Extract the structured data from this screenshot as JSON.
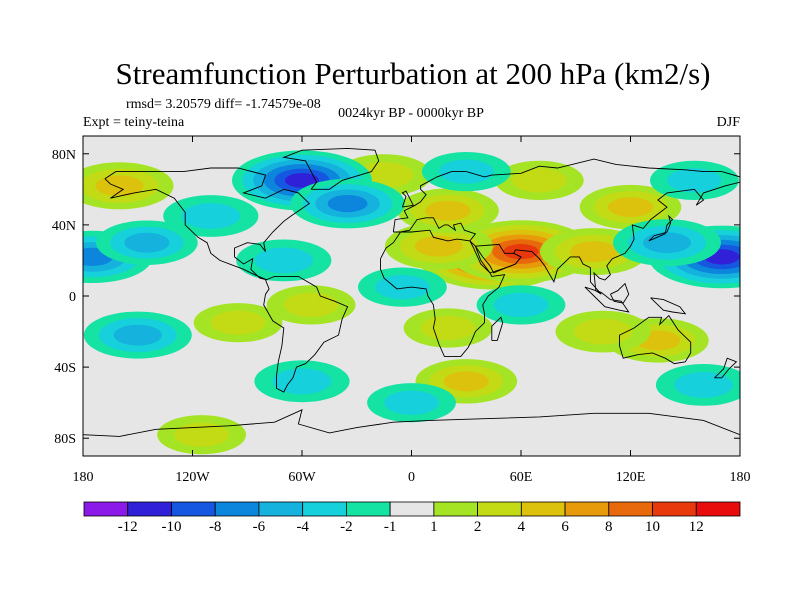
{
  "chart_data": {
    "type": "contour-map",
    "title": "Streamfunction Perturbation at 200 hPa (km2/s)",
    "stats": "rmsd= 3.20579 diff= -1.74579e-08",
    "experiment": "Expt = teiny-teina",
    "period": "0024kyr BP - 0000kyr BP",
    "season": "DJF",
    "x_ticks": [
      "180",
      "120W",
      "60W",
      "0",
      "60E",
      "120E",
      "180"
    ],
    "x_tick_values": [
      -180,
      -120,
      -60,
      0,
      60,
      120,
      180
    ],
    "y_ticks": [
      "80N",
      "40N",
      "0",
      "40S",
      "80S"
    ],
    "y_tick_values": [
      80,
      40,
      0,
      -40,
      -80
    ],
    "xlim": [
      -180,
      180
    ],
    "ylim": [
      -90,
      90
    ],
    "colorbar_labels": [
      "-12",
      "-10",
      "-8",
      "-6",
      "-4",
      "-2",
      "-1",
      "1",
      "2",
      "4",
      "6",
      "8",
      "10",
      "12"
    ],
    "colorbar_colors": [
      "#8b19e8",
      "#3020d8",
      "#1557e0",
      "#0c86dd",
      "#15b2de",
      "#16d0dc",
      "#15e3a3",
      "#e6e6e6",
      "#a5e424",
      "#c2db14",
      "#dcc20c",
      "#e89b0a",
      "#e8690c",
      "#e8390c",
      "#e80c0c"
    ],
    "features": [
      {
        "lon": 45,
        "lat": 22,
        "value": 12
      },
      {
        "lon": 60,
        "lat": 25,
        "value": 11
      },
      {
        "lon": 15,
        "lat": 28,
        "value": 5
      },
      {
        "lon": 100,
        "lat": 25,
        "value": 5
      },
      {
        "lon": 120,
        "lat": 50,
        "value": 4
      },
      {
        "lon": 20,
        "lat": 48,
        "value": 4
      },
      {
        "lon": -160,
        "lat": 62,
        "value": 5
      },
      {
        "lon": -15,
        "lat": 68,
        "value": 3
      },
      {
        "lon": 70,
        "lat": 65,
        "value": 2
      },
      {
        "lon": -55,
        "lat": -5,
        "value": 2
      },
      {
        "lon": -95,
        "lat": -15,
        "value": 2
      },
      {
        "lon": 20,
        "lat": -18,
        "value": 2
      },
      {
        "lon": 30,
        "lat": -48,
        "value": 4
      },
      {
        "lon": 135,
        "lat": -25,
        "value": 4
      },
      {
        "lon": 105,
        "lat": -20,
        "value": 3
      },
      {
        "lon": -115,
        "lat": -78,
        "value": 2
      },
      {
        "lon": -60,
        "lat": 65,
        "value": -10
      },
      {
        "lon": -35,
        "lat": 52,
        "value": -6
      },
      {
        "lon": 170,
        "lat": 22,
        "value": -11
      },
      {
        "lon": 140,
        "lat": 30,
        "value": -5
      },
      {
        "lon": -175,
        "lat": 22,
        "value": -7
      },
      {
        "lon": -145,
        "lat": 30,
        "value": -4
      },
      {
        "lon": -110,
        "lat": 45,
        "value": -3
      },
      {
        "lon": -70,
        "lat": 20,
        "value": -3
      },
      {
        "lon": -150,
        "lat": -22,
        "value": -5
      },
      {
        "lon": -60,
        "lat": -48,
        "value": -3
      },
      {
        "lon": 60,
        "lat": -5,
        "value": -2
      },
      {
        "lon": -5,
        "lat": 5,
        "value": -2
      },
      {
        "lon": 0,
        "lat": -60,
        "value": -2
      },
      {
        "lon": 160,
        "lat": -50,
        "value": -3
      },
      {
        "lon": 30,
        "lat": 70,
        "value": -2
      },
      {
        "lon": 155,
        "lat": 65,
        "value": -2
      }
    ]
  }
}
